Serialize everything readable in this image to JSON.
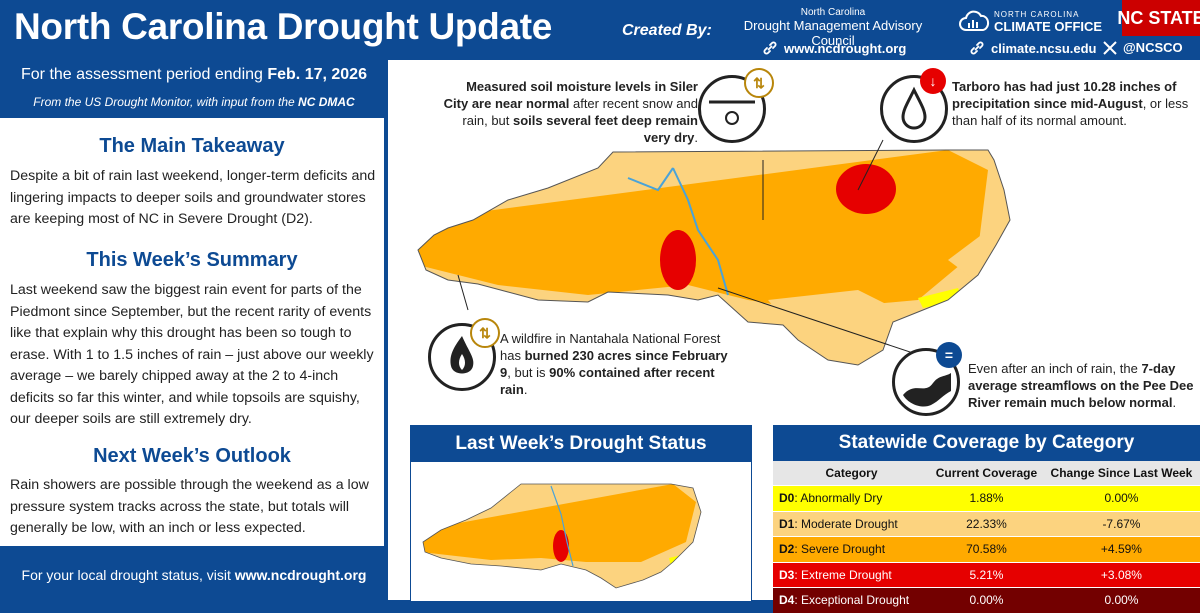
{
  "header": {
    "title": "North Carolina Drought Update",
    "created_by": "Created By:",
    "dmac_top": "North Carolina",
    "dmac_name": "Drought Management Advisory Council",
    "link1": "www.ncdrought.org",
    "link2": "climate.ncsu.edu",
    "social": "@NCSCO",
    "nccco_small": "NORTH CAROLINA",
    "nccco_big": "CLIMATE OFFICE",
    "ncstate": "NC STATE"
  },
  "sidebar": {
    "period_prefix": "For the assessment period ending ",
    "period_date": "Feb. 17, 2026",
    "source_prefix": "From the US Drought Monitor, with input from the ",
    "source_org": "NC DMAC",
    "takeaway_title": "The Main Takeaway",
    "takeaway_text": "Despite a bit of rain last weekend, longer-term deficits and lingering impacts to deeper soils and groundwater stores are keeping most of NC in Severe Drought (D2).",
    "summary_title": "This Week’s Summary",
    "summary_text": "Last weekend saw the biggest rain event for parts of the Piedmont since September, but the recent rarity of events like that explain why this drought has been so tough to erase. With 1 to 1.5 inches of rain – just above our weekly average – we barely chipped away at the 2 to 4-inch deficits so far this winter, and while topsoils are squishy, our deeper soils are still extremely dry.",
    "outlook_title": "Next Week’s Outlook",
    "outlook_text": "Rain showers are possible through the weekend as a low pressure system tracks across the state, but totals will generally be low, with an inch or less expected.",
    "footer_prefix": "For your local drought status, visit ",
    "footer_link": "www.ncdrought.org"
  },
  "callouts": {
    "soil_a": "Measured soil moisture levels in Siler City",
    "soil_b": "are near normal",
    "soil_c": " after recent snow and rain, but ",
    "soil_d": "soils several feet deep remain very dry",
    "soil_e": ".",
    "tarboro_a": "Tarboro has had just 10.28 inches of precipitation since mid-August",
    "tarboro_b": ", or less than half of its normal amount.",
    "fire_a": "A wildfire in Nantahala National Forest has ",
    "fire_b": "burned 230 acres since February 9",
    "fire_c": ", but is ",
    "fire_d": "90% contained after recent rain",
    "fire_e": ".",
    "stream_a": "Even after an inch of rain, the ",
    "stream_b": "7-day average streamflows on the Pee Dee River remain much below normal",
    "stream_c": "."
  },
  "last_week": {
    "title": "Last Week’s Drought Status"
  },
  "coverage": {
    "title": "Statewide Coverage by Category",
    "headers": [
      "Category",
      "Current Coverage",
      "Change Since Last Week"
    ],
    "rows": [
      {
        "code": "D0",
        "label": ": Abnormally Dry",
        "current": "1.88%",
        "change": "0.00%",
        "bg": "#ffff00",
        "fg": "#111111"
      },
      {
        "code": "D1",
        "label": ": Moderate Drought",
        "current": "22.33%",
        "change": "-7.67%",
        "bg": "#fcd37f",
        "fg": "#111111"
      },
      {
        "code": "D2",
        "label": ": Severe Drought",
        "current": "70.58%",
        "change": "+4.59%",
        "bg": "#ffaa00",
        "fg": "#111111"
      },
      {
        "code": "D3",
        "label": ": Extreme Drought",
        "current": "5.21%",
        "change": "+3.08%",
        "bg": "#e60000",
        "fg": "#ffffff"
      },
      {
        "code": "D4",
        "label": ": Exceptional Drought",
        "current": "0.00%",
        "change": "0.00%",
        "bg": "#730000",
        "fg": "#ffffff"
      }
    ]
  },
  "colors": {
    "brand_blue": "#0d4a93",
    "ncstate_red": "#cc0000",
    "d0": "#ffff00",
    "d1": "#fcd37f",
    "d2": "#ffaa00",
    "d3": "#e60000",
    "d4": "#730000"
  }
}
